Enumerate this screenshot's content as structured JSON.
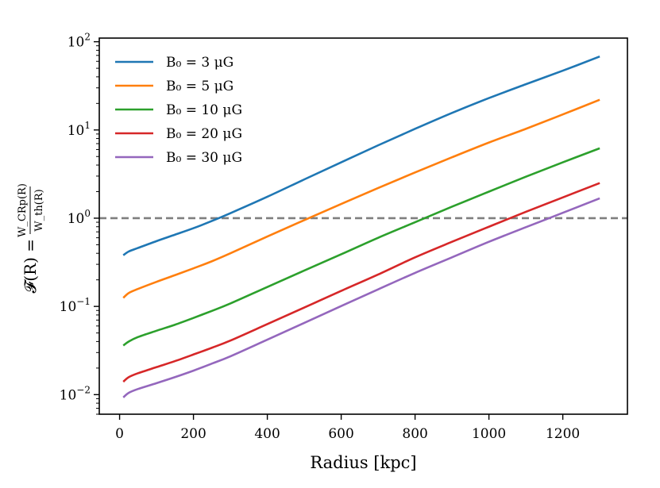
{
  "chart_data": {
    "type": "line",
    "xlabel": "Radius [kpc]",
    "ylabel": {
      "lhs": "𝓕(R) =",
      "numerator": "W_CRp(R)",
      "denominator": "W_th(R)"
    },
    "xlim": [
      -55,
      1375
    ],
    "ylim": [
      0.006,
      110
    ],
    "yscale": "log",
    "grid": false,
    "legend_position": "top-left",
    "x_ticks": [
      {
        "value": 0,
        "label": "0"
      },
      {
        "value": 200,
        "label": "200"
      },
      {
        "value": 400,
        "label": "400"
      },
      {
        "value": 600,
        "label": "600"
      },
      {
        "value": 800,
        "label": "800"
      },
      {
        "value": 1000,
        "label": "1000"
      },
      {
        "value": 1200,
        "label": "1200"
      }
    ],
    "y_ticks": [
      {
        "value": 0.01,
        "base": "10",
        "exp": "−2"
      },
      {
        "value": 0.1,
        "base": "10",
        "exp": "−1"
      },
      {
        "value": 1,
        "base": "10",
        "exp": "0"
      },
      {
        "value": 10,
        "base": "10",
        "exp": "1"
      },
      {
        "value": 100,
        "base": "10",
        "exp": "2"
      }
    ],
    "reference_line": {
      "y": 1.0,
      "style": "dashed",
      "color": "#7f7f7f"
    },
    "series": [
      {
        "name": "B₀ = 3 μG",
        "color": "#1f77b4",
        "points": [
          [
            10,
            0.38
          ],
          [
            25,
            0.42
          ],
          [
            50,
            0.46
          ],
          [
            100,
            0.55
          ],
          [
            150,
            0.65
          ],
          [
            200,
            0.77
          ],
          [
            250,
            0.93
          ],
          [
            300,
            1.14
          ],
          [
            400,
            1.75
          ],
          [
            500,
            2.75
          ],
          [
            600,
            4.3
          ],
          [
            700,
            6.7
          ],
          [
            800,
            10.3
          ],
          [
            900,
            15.6
          ],
          [
            1000,
            23.0
          ],
          [
            1100,
            33.0
          ],
          [
            1200,
            47.0
          ],
          [
            1300,
            68.0
          ]
        ]
      },
      {
        "name": "B₀ = 5 μG",
        "color": "#ff7f0e",
        "points": [
          [
            10,
            0.125
          ],
          [
            25,
            0.142
          ],
          [
            50,
            0.158
          ],
          [
            100,
            0.19
          ],
          [
            150,
            0.226
          ],
          [
            200,
            0.27
          ],
          [
            250,
            0.325
          ],
          [
            300,
            0.4
          ],
          [
            400,
            0.62
          ],
          [
            500,
            0.95
          ],
          [
            600,
            1.45
          ],
          [
            700,
            2.2
          ],
          [
            800,
            3.3
          ],
          [
            900,
            4.9
          ],
          [
            1000,
            7.2
          ],
          [
            1100,
            10.3
          ],
          [
            1200,
            15.0
          ],
          [
            1300,
            22.0
          ]
        ]
      },
      {
        "name": "B₀ = 10 μG",
        "color": "#2ca02c",
        "points": [
          [
            10,
            0.036
          ],
          [
            25,
            0.04
          ],
          [
            50,
            0.045
          ],
          [
            100,
            0.053
          ],
          [
            150,
            0.062
          ],
          [
            200,
            0.074
          ],
          [
            250,
            0.089
          ],
          [
            300,
            0.108
          ],
          [
            400,
            0.166
          ],
          [
            500,
            0.255
          ],
          [
            600,
            0.39
          ],
          [
            700,
            0.6
          ],
          [
            800,
            0.9
          ],
          [
            900,
            1.35
          ],
          [
            1000,
            2.0
          ],
          [
            1100,
            2.95
          ],
          [
            1200,
            4.3
          ],
          [
            1300,
            6.2
          ]
        ]
      },
      {
        "name": "B₀ = 20 μG",
        "color": "#d62728",
        "points": [
          [
            10,
            0.014
          ],
          [
            25,
            0.0158
          ],
          [
            50,
            0.0175
          ],
          [
            100,
            0.0205
          ],
          [
            150,
            0.024
          ],
          [
            200,
            0.0285
          ],
          [
            250,
            0.034
          ],
          [
            300,
            0.041
          ],
          [
            400,
            0.063
          ],
          [
            500,
            0.097
          ],
          [
            600,
            0.15
          ],
          [
            700,
            0.23
          ],
          [
            800,
            0.36
          ],
          [
            900,
            0.54
          ],
          [
            1000,
            0.8
          ],
          [
            1100,
            1.18
          ],
          [
            1200,
            1.72
          ],
          [
            1300,
            2.5
          ]
        ]
      },
      {
        "name": "B₀ = 30 μG",
        "color": "#9467bd",
        "points": [
          [
            10,
            0.0093
          ],
          [
            25,
            0.0105
          ],
          [
            50,
            0.0116
          ],
          [
            100,
            0.0135
          ],
          [
            150,
            0.0158
          ],
          [
            200,
            0.0187
          ],
          [
            250,
            0.0225
          ],
          [
            300,
            0.0272
          ],
          [
            400,
            0.042
          ],
          [
            500,
            0.065
          ],
          [
            600,
            0.101
          ],
          [
            700,
            0.156
          ],
          [
            800,
            0.24
          ],
          [
            900,
            0.36
          ],
          [
            1000,
            0.54
          ],
          [
            1100,
            0.79
          ],
          [
            1200,
            1.15
          ],
          [
            1300,
            1.68
          ]
        ]
      }
    ]
  }
}
